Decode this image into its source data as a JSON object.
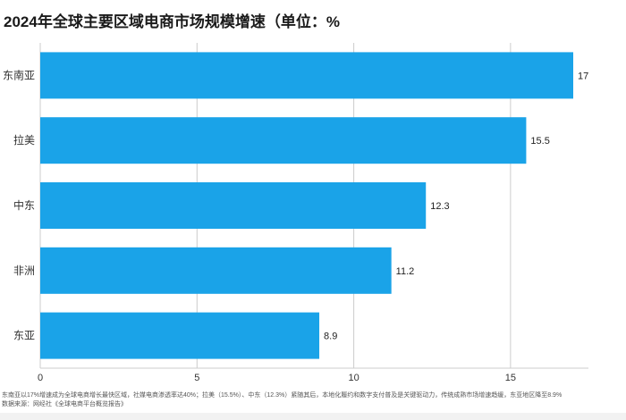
{
  "chart_data": {
    "type": "bar",
    "orientation": "horizontal",
    "title": "2024年全球主要区域电商市场规模增速（单位：%",
    "categories": [
      "东南亚",
      "拉美",
      "中东",
      "非洲",
      "东亚"
    ],
    "values": [
      17,
      15.5,
      12.3,
      11.2,
      8.9
    ],
    "value_labels": [
      "17",
      "15.5",
      "12.3",
      "11.2",
      "8.9"
    ],
    "xlim": [
      0,
      17.5
    ],
    "xticks": [
      0,
      5,
      10,
      15
    ],
    "xtick_labels": [
      "0",
      "5",
      "10",
      "15"
    ],
    "grid": true,
    "bar_color": "#1aa3e8",
    "grid_color": "#cccccc"
  },
  "footnote": {
    "line1": "东南亚以17%增速成为全球电商增长最快区域，社媒电商渗透率达40%；拉美（15.5%）、中东（12.3%）紧随其后，本地化履约和数字支付普及是关键驱动力，传统成熟市场增速趋缓，东亚地区降至8.9%",
    "line2": "数据来源：网经社《全球电商平台概览报告》"
  }
}
